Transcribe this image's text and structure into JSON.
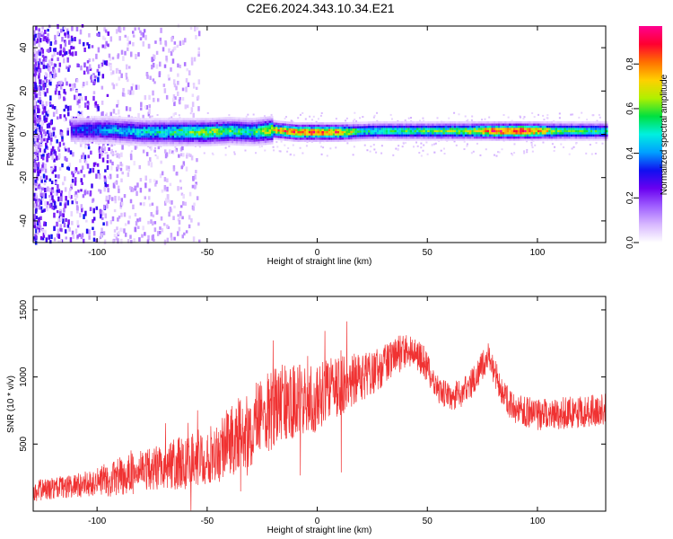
{
  "title": "C2E6.2024.343.10.34.E21",
  "colors": {
    "snr_line": "#f03232",
    "colormap": [
      "#ffffff",
      "#d8b8ff",
      "#a060ff",
      "#6a00f0",
      "#1010f0",
      "#00a0ff",
      "#00f0e0",
      "#00e040",
      "#b0f000",
      "#ffd000",
      "#ff7000",
      "#ff0030",
      "#ff0090"
    ]
  },
  "chart_data": [
    {
      "type": "heatmap",
      "title": "C2E6.2024.343.10.34.E21",
      "xlabel": "Height of straight line (km)",
      "ylabel": "Frequency (Hz)",
      "xlim": [
        -129,
        131
      ],
      "ylim": [
        -50,
        50
      ],
      "xticks": [
        -100,
        -50,
        0,
        50,
        100
      ],
      "xtick_labels": [
        "-100",
        "-50",
        "0",
        "50",
        "100"
      ],
      "yticks": [
        -40,
        -20,
        0,
        20,
        40
      ],
      "ytick_labels": [
        "-40",
        "-20",
        "0",
        "20",
        "40"
      ],
      "grid": false,
      "colorbar": {
        "label": "Normalized spectral amplitude",
        "range": [
          0,
          0.97
        ],
        "ticks": [
          0,
          0.2,
          0.4,
          0.6,
          0.8
        ],
        "tick_labels": [
          "0.0",
          "0.2",
          "0.4",
          "0.6",
          "0.8"
        ]
      },
      "ridge": {
        "description_values": "dominant frequency near 0 Hz across all heights",
        "center_hz": [
          [
            -110,
            2
          ],
          [
            -95,
            2
          ],
          [
            -80,
            1
          ],
          [
            -65,
            1
          ],
          [
            -50,
            1
          ],
          [
            -40,
            1.5
          ],
          [
            -30,
            1
          ],
          [
            -20,
            2
          ],
          [
            -10,
            1
          ],
          [
            0,
            1
          ],
          [
            10,
            1
          ],
          [
            25,
            1.5
          ],
          [
            50,
            1.5
          ],
          [
            75,
            1.5
          ],
          [
            100,
            1.5
          ],
          [
            131,
            1.5
          ]
        ],
        "peak_amplitude": [
          [
            -110,
            0.35
          ],
          [
            -95,
            0.45
          ],
          [
            -80,
            0.5
          ],
          [
            -70,
            0.55
          ],
          [
            -60,
            0.6
          ],
          [
            -50,
            0.65
          ],
          [
            -40,
            0.6
          ],
          [
            -30,
            0.55
          ],
          [
            -15,
            0.85
          ],
          [
            0,
            0.9
          ],
          [
            8,
            0.9
          ],
          [
            20,
            0.55
          ],
          [
            50,
            0.6
          ],
          [
            70,
            0.7
          ],
          [
            80,
            0.95
          ],
          [
            95,
            0.95
          ],
          [
            110,
            0.6
          ],
          [
            131,
            0.55
          ]
        ]
      }
    },
    {
      "type": "line",
      "xlabel": "Height of straight line (km)",
      "ylabel": "SNR (10 * v/v)",
      "xlim": [
        -129,
        131
      ],
      "ylim": [
        0,
        1600
      ],
      "xticks": [
        -100,
        -50,
        0,
        50,
        100
      ],
      "xtick_labels": [
        "-100",
        "-50",
        "0",
        "50",
        "100"
      ],
      "yticks": [
        500,
        1000,
        1500
      ],
      "ytick_labels": [
        "500",
        "1000",
        "1500"
      ],
      "grid": false,
      "series": [
        {
          "x": [
            -129,
            -120,
            -110,
            -100,
            -90,
            -80,
            -70,
            -60,
            -50,
            -40,
            -30,
            -25,
            -20,
            -10,
            0,
            5,
            10,
            20,
            30,
            35,
            40,
            45,
            50,
            55,
            60,
            65,
            70,
            75,
            78,
            80,
            85,
            90,
            100,
            110,
            120,
            131
          ],
          "mean": [
            150,
            170,
            190,
            220,
            250,
            300,
            330,
            360,
            420,
            520,
            600,
            700,
            780,
            820,
            850,
            900,
            950,
            1000,
            1080,
            1150,
            1200,
            1180,
            1080,
            900,
            850,
            870,
            950,
            1080,
            1150,
            1060,
            850,
            760,
            720,
            730,
            740,
            760
          ],
          "spread": [
            80,
            80,
            90,
            110,
            150,
            160,
            170,
            210,
            220,
            260,
            300,
            330,
            320,
            280,
            250,
            230,
            250,
            180,
            160,
            140,
            140,
            130,
            120,
            110,
            110,
            110,
            110,
            110,
            110,
            110,
            110,
            110,
            120,
            120,
            120,
            120
          ]
        }
      ]
    }
  ]
}
